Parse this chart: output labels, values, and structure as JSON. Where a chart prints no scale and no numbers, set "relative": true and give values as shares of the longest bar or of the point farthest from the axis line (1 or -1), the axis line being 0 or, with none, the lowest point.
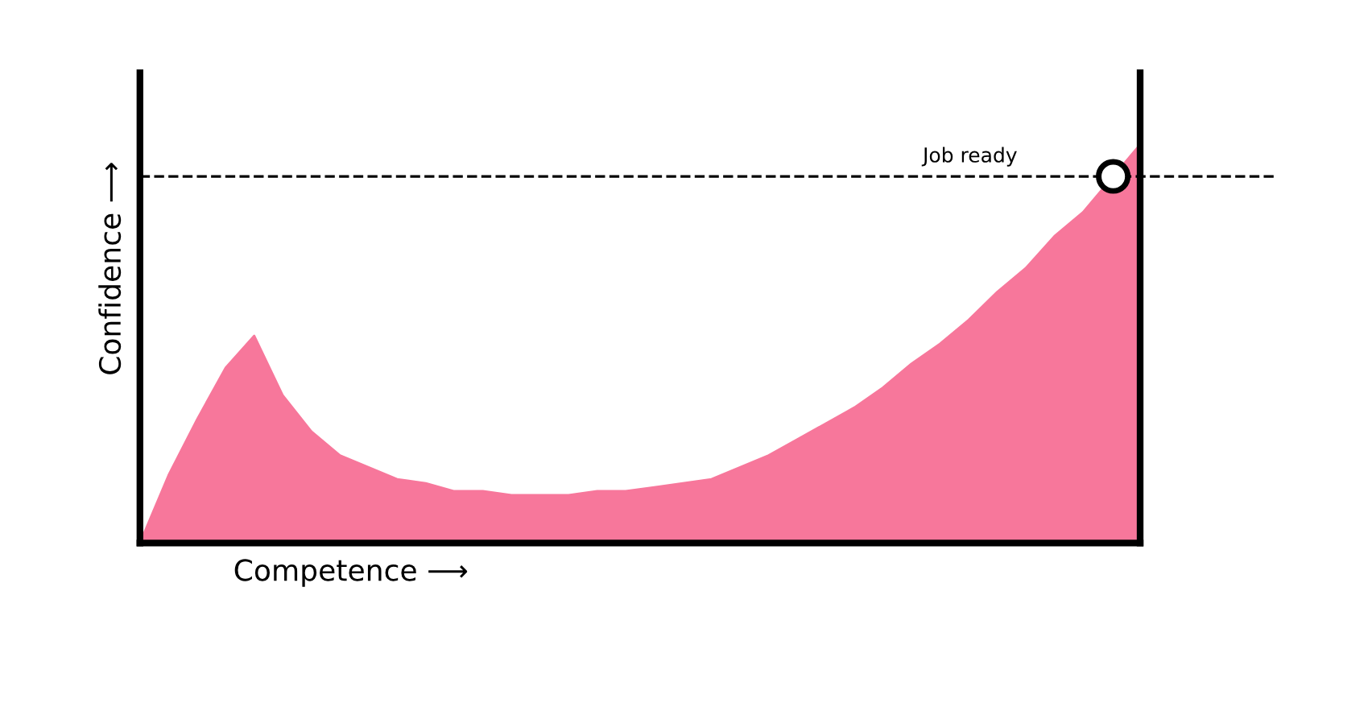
{
  "chart_data": {
    "type": "area",
    "relative": true,
    "xlabel": "Competence ⟶",
    "ylabel": "Confidence ⟶",
    "categories": [
      null,
      null,
      null,
      null,
      null,
      null,
      null,
      null,
      null,
      null,
      null,
      null,
      null,
      null,
      null,
      null,
      null,
      null,
      null,
      null,
      null,
      null,
      null,
      null,
      null,
      null,
      null,
      null,
      null,
      null,
      null,
      null,
      null,
      null,
      null,
      null
    ],
    "series": [
      {
        "color": "#f7779b",
        "values": [
          0,
          0.17,
          0.31,
          0.44,
          0.52,
          0.37,
          0.28,
          0.22,
          0.19,
          0.16,
          0.15,
          0.13,
          0.13,
          0.12,
          0.12,
          0.12,
          0.13,
          0.13,
          0.14,
          0.15,
          0.16,
          0.19,
          0.22,
          0.26,
          0.3,
          0.34,
          0.39,
          0.45,
          0.5,
          0.56,
          0.63,
          0.69,
          0.77,
          0.83,
          null,
          1.0
        ]
      }
    ],
    "ref_lines": [
      {
        "axis": "y",
        "value": 0.92,
        "label": "Job ready",
        "color": "#000000",
        "line_style": "dashed"
      }
    ],
    "grid": false,
    "legend": false
  }
}
